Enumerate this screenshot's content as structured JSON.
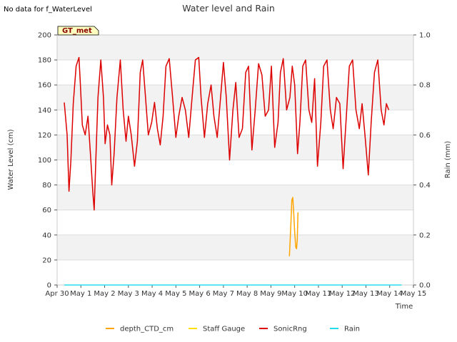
{
  "header": {
    "no_data_note": "No data for f_WaterLevel"
  },
  "chart_data": {
    "type": "line",
    "title": "Water level and Rain",
    "xlabel": "Time",
    "ylabel": "Water Level (cm)",
    "y2label": "Rain (mm)",
    "xlim": [
      0,
      15
    ],
    "ylim": [
      0,
      200
    ],
    "y2lim": [
      0,
      1.0
    ],
    "x_tick_values": [
      0,
      1,
      2,
      3,
      4,
      5,
      6,
      7,
      8,
      9,
      10,
      11,
      12,
      13,
      14,
      15
    ],
    "x_tick_labels": [
      "Apr 30",
      "May 1",
      "May 2",
      "May 3",
      "May 4",
      "May 5",
      "May 6",
      "May 7",
      "May 8",
      "May 9",
      "May 10",
      "May 11",
      "May 12",
      "May 13",
      "May 14",
      "May 15"
    ],
    "y_ticks": [
      0,
      20,
      40,
      60,
      80,
      100,
      120,
      140,
      160,
      180,
      200
    ],
    "y2_ticks": [
      "0.0",
      "0.2",
      "0.4",
      "0.6",
      "0.8",
      "1.0"
    ],
    "y2_tick_values": [
      0,
      0.2,
      0.4,
      0.6,
      0.8,
      1.0
    ],
    "grid": true,
    "badge": "GT_met",
    "legend_position": "bottom-center",
    "series": [
      {
        "name": "depth_CTD_cm",
        "color": "#FFA500",
        "axis": "left",
        "x": [
          9.78,
          9.84,
          9.88,
          9.92,
          9.96,
          10.0,
          10.05,
          10.08,
          10.11,
          10.14
        ],
        "y": [
          23,
          48,
          68,
          70,
          58,
          42,
          30,
          29,
          36,
          58
        ]
      },
      {
        "name": "Staff Gauge",
        "color": "#FFE000",
        "axis": "left",
        "x": [],
        "y": []
      },
      {
        "name": "SonicRng",
        "color": "#DD0000",
        "axis": "left",
        "x": [
          0.3,
          0.42,
          0.5,
          0.58,
          0.68,
          0.8,
          0.92,
          0.98,
          1.06,
          1.18,
          1.3,
          1.42,
          1.5,
          1.56,
          1.62,
          1.72,
          1.84,
          1.95,
          2.02,
          2.12,
          2.22,
          2.3,
          2.4,
          2.52,
          2.66,
          2.78,
          2.9,
          3.0,
          3.12,
          3.26,
          3.38,
          3.5,
          3.6,
          3.72,
          3.84,
          3.98,
          4.1,
          4.22,
          4.34,
          4.46,
          4.58,
          4.72,
          4.86,
          5.0,
          5.12,
          5.26,
          5.4,
          5.54,
          5.68,
          5.82,
          5.96,
          6.06,
          6.2,
          6.34,
          6.48,
          6.6,
          6.74,
          6.88,
          7.0,
          7.12,
          7.26,
          7.4,
          7.52,
          7.66,
          7.8,
          7.94,
          8.06,
          8.2,
          8.34,
          8.48,
          8.62,
          8.76,
          8.9,
          9.02,
          9.16,
          9.3,
          9.4,
          9.52,
          9.66,
          9.8,
          9.9,
          10.0,
          10.12,
          10.22,
          10.34,
          10.46,
          10.6,
          10.72,
          10.84,
          10.96,
          11.1,
          11.22,
          11.36,
          11.5,
          11.62,
          11.76,
          11.9,
          12.04,
          12.16,
          12.3,
          12.44,
          12.58,
          12.72,
          12.84,
          12.96,
          13.1,
          13.22,
          13.36,
          13.5,
          13.64,
          13.76,
          13.86,
          13.96
        ],
        "y": [
          146,
          120,
          75,
          100,
          145,
          175,
          182,
          160,
          128,
          120,
          135,
          100,
          75,
          60,
          95,
          150,
          180,
          150,
          113,
          128,
          120,
          80,
          105,
          150,
          180,
          140,
          115,
          135,
          120,
          95,
          115,
          170,
          180,
          150,
          120,
          130,
          146,
          125,
          112,
          135,
          175,
          181,
          150,
          118,
          135,
          150,
          140,
          118,
          150,
          180,
          182,
          150,
          118,
          145,
          160,
          135,
          118,
          150,
          178,
          150,
          100,
          140,
          162,
          118,
          125,
          170,
          175,
          108,
          140,
          177,
          168,
          135,
          140,
          175,
          110,
          130,
          170,
          181,
          140,
          150,
          175,
          160,
          105,
          130,
          175,
          180,
          140,
          130,
          165,
          95,
          130,
          175,
          180,
          140,
          125,
          150,
          145,
          93,
          130,
          175,
          180,
          140,
          125,
          145,
          120,
          88,
          130,
          170,
          180,
          140,
          128,
          145,
          140
        ]
      },
      {
        "name": "Rain",
        "color": "#22DDEE",
        "axis": "right",
        "x": [
          0.3,
          14.5
        ],
        "y": [
          0,
          0
        ]
      }
    ]
  }
}
